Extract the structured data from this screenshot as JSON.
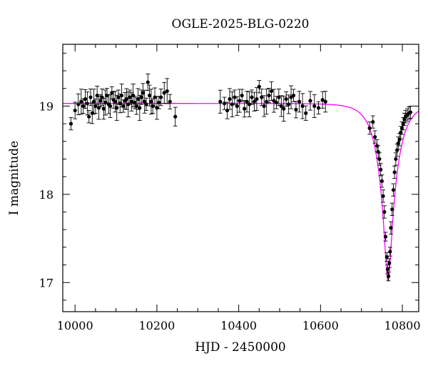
{
  "chart_data": {
    "type": "scatter",
    "title": "OGLE-2025-BLG-0220",
    "xlabel": "HJD - 2450000",
    "ylabel": "I magnitude",
    "xlim": [
      9970,
      10840
    ],
    "ylim": [
      19.7,
      16.67
    ],
    "y_inverted": true,
    "x_ticks": [
      10000,
      10200,
      10400,
      10600,
      10800
    ],
    "y_ticks": [
      17,
      18,
      19
    ],
    "grid": false,
    "colors": {
      "points": "#000000",
      "model": "#ff00ff"
    },
    "model": {
      "name": "",
      "baseline": 19.03,
      "peak_mag": 17.02,
      "t0": 10765,
      "tE": 40,
      "u0": 0.18
    },
    "series": [
      {
        "x": [
          9990,
          10000,
          10008,
          10015,
          10020,
          10025,
          10030,
          10034,
          10038,
          10042,
          10046,
          10050,
          10054,
          10058,
          10062,
          10066,
          10070,
          10074,
          10078,
          10082,
          10086,
          10090,
          10094,
          10098,
          10102,
          10106,
          10110,
          10114,
          10118,
          10122,
          10126,
          10130,
          10134,
          10138,
          10142,
          10146,
          10150,
          10154,
          10158,
          10162,
          10166,
          10170,
          10174,
          10178,
          10182,
          10186,
          10190,
          10195,
          10200,
          10205,
          10210,
          10218,
          10225,
          10232,
          10245,
          10355,
          10365,
          10372,
          10378,
          10384,
          10390,
          10396,
          10402,
          10408,
          10414,
          10420,
          10426,
          10432,
          10438,
          10444,
          10450,
          10456,
          10462,
          10468,
          10474,
          10480,
          10486,
          10492,
          10498,
          10504,
          10510,
          10516,
          10522,
          10528,
          10534,
          10540,
          10548,
          10556,
          10564,
          10575,
          10585,
          10595,
          10605,
          10612,
          10720,
          10728,
          10733,
          10738,
          10741,
          10744,
          10747,
          10750,
          10753,
          10756,
          10759,
          10762,
          10764,
          10766,
          10768,
          10770,
          10772,
          10775,
          10778,
          10781,
          10784,
          10787,
          10790,
          10793,
          10796,
          10799,
          10802,
          10805,
          10808,
          10812,
          10816,
          10820
        ],
        "y": [
          18.8,
          18.95,
          19.02,
          19.05,
          19.0,
          19.08,
          19.03,
          18.88,
          19.1,
          18.92,
          19.05,
          19.0,
          19.12,
          18.98,
          19.06,
          19.1,
          18.97,
          19.04,
          19.12,
          19.02,
          19.0,
          19.15,
          19.07,
          19.05,
          18.98,
          19.1,
          19.03,
          19.12,
          19.0,
          19.06,
          19.08,
          19.02,
          19.1,
          19.05,
          19.12,
          19.04,
          19.0,
          19.08,
          18.98,
          19.1,
          19.15,
          19.05,
          19.02,
          19.27,
          19.12,
          19.05,
          19.0,
          19.1,
          18.98,
          19.04,
          19.1,
          19.15,
          19.17,
          19.05,
          18.88,
          19.05,
          19.03,
          18.95,
          19.08,
          19.02,
          19.1,
          19.0,
          19.06,
          19.12,
          18.97,
          19.05,
          19.02,
          19.1,
          19.05,
          19.08,
          19.22,
          19.1,
          19.0,
          19.05,
          19.12,
          19.17,
          19.06,
          19.04,
          19.1,
          19.0,
          18.97,
          19.08,
          19.02,
          19.1,
          19.12,
          18.96,
          19.05,
          19.0,
          18.92,
          19.06,
          19.0,
          18.98,
          19.07,
          19.05,
          18.75,
          18.82,
          18.65,
          18.55,
          18.48,
          18.4,
          18.28,
          18.15,
          17.98,
          17.8,
          17.52,
          17.29,
          17.15,
          17.07,
          17.22,
          17.35,
          17.62,
          17.83,
          18.05,
          18.25,
          18.4,
          18.5,
          18.58,
          18.62,
          18.7,
          18.75,
          18.8,
          18.85,
          18.88,
          18.9,
          18.92,
          18.93
        ]
      }
    ]
  }
}
